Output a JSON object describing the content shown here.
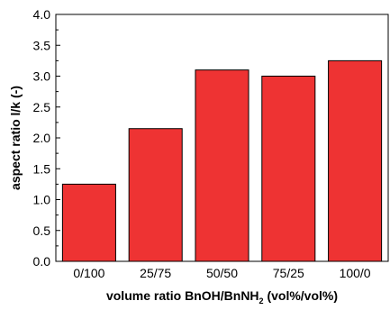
{
  "chart_data": {
    "type": "bar",
    "categories": [
      "0/100",
      "25/75",
      "50/50",
      "75/25",
      "100/0"
    ],
    "values": [
      1.25,
      2.15,
      3.1,
      3.0,
      3.25
    ],
    "xlabel_main": "volume ratio BnOH/BnNH",
    "xlabel_sub": "2",
    "xlabel_tail": " (vol%/vol%)",
    "ylabel": "aspect ratio l/k (-)",
    "ylim": [
      0.0,
      4.0
    ],
    "yticks": [
      "0.0",
      "0.5",
      "1.0",
      "1.5",
      "2.0",
      "2.5",
      "3.0",
      "3.5",
      "4.0"
    ],
    "grid": false,
    "bar_color": "#ee3333",
    "bar_edge_color": "#000000"
  }
}
